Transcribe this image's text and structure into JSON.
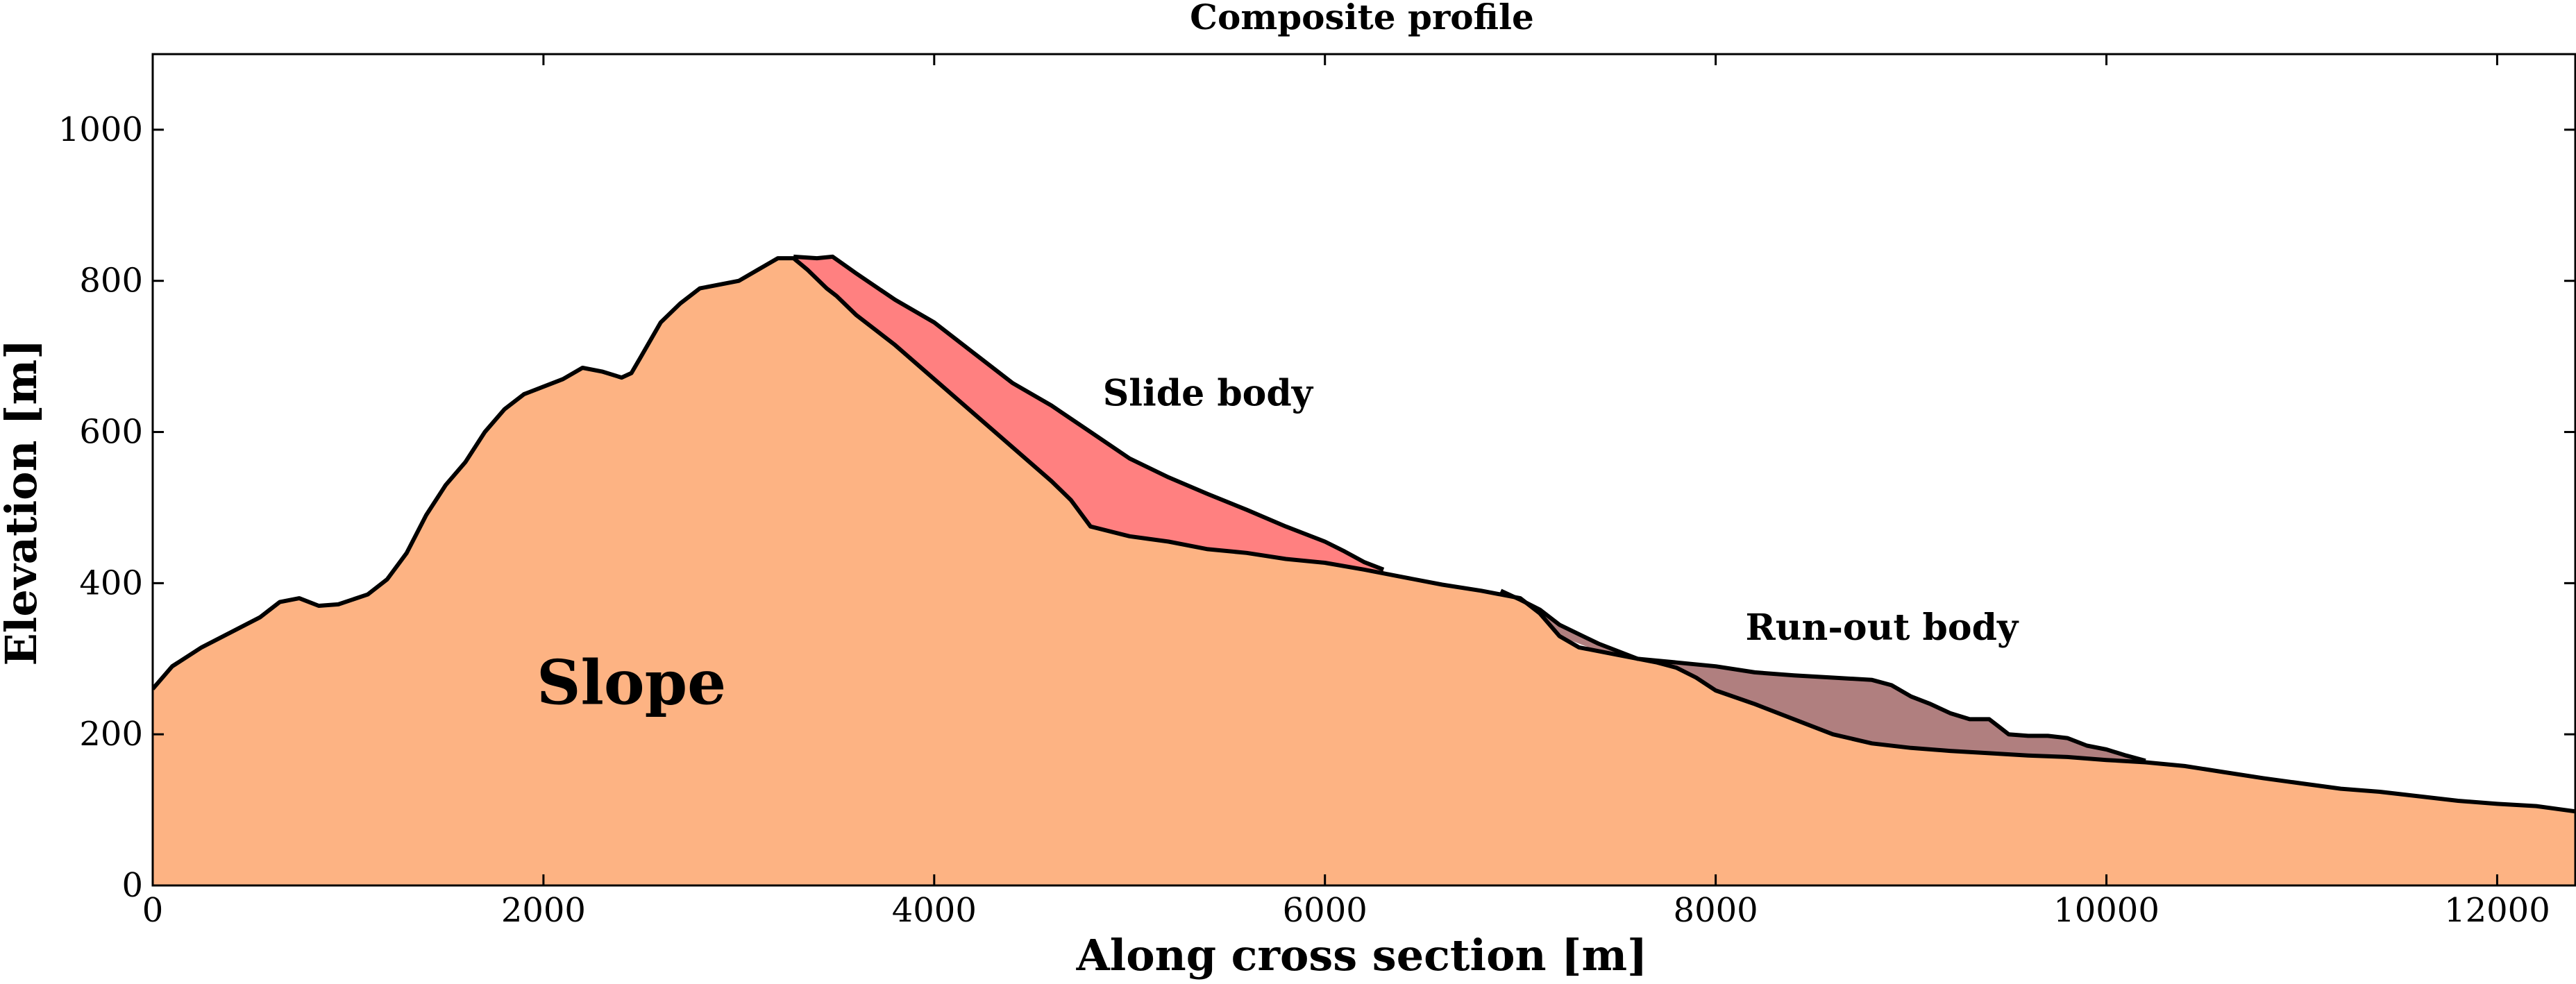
{
  "chart_data": {
    "type": "area",
    "title": "Composite profile",
    "xlabel": "Along cross section [m]",
    "ylabel": "Elevation [m]",
    "xlim": [
      0,
      12400
    ],
    "ylim": [
      0,
      1100
    ],
    "xticks": [
      0,
      2000,
      4000,
      6000,
      8000,
      10000,
      12000
    ],
    "yticks": [
      0,
      200,
      400,
      600,
      800,
      1000
    ],
    "grid": false,
    "colors": {
      "slope": "#fdb383",
      "slide_body": "#ff8080",
      "runout_body": "#b07f7f",
      "outline": "#000000"
    },
    "annotations": [
      {
        "text": "Slope",
        "x": 2450,
        "y": 240
      },
      {
        "text": "Slide body",
        "x": 5400,
        "y": 635
      },
      {
        "text": "Run-out body",
        "x": 8850,
        "y": 325
      }
    ],
    "series": [
      {
        "name": "Slope",
        "x": [
          0,
          100,
          250,
          400,
          550,
          650,
          750,
          850,
          950,
          1100,
          1200,
          1300,
          1400,
          1500,
          1600,
          1700,
          1800,
          1900,
          2000,
          2100,
          2200,
          2300,
          2400,
          2450,
          2500,
          2600,
          2700,
          2800,
          3000,
          3100,
          3200,
          3280,
          3350,
          3450,
          3500,
          3600,
          3700,
          3800,
          4000,
          4200,
          4400,
          4600,
          4700,
          4800,
          5000,
          5200,
          5400,
          5600,
          5800,
          6000,
          6200,
          6400,
          6600,
          6800,
          7000,
          7100,
          7200,
          7300,
          7500,
          7700,
          7800,
          7900,
          8000,
          8200,
          8400,
          8600,
          8800,
          9000,
          9200,
          9400,
          9600,
          9800,
          10000,
          10200,
          10400,
          10600,
          10800,
          11000,
          11200,
          11400,
          11600,
          11800,
          12000,
          12200,
          12400
        ],
        "y": [
          260,
          290,
          315,
          335,
          355,
          375,
          380,
          370,
          372,
          385,
          405,
          440,
          490,
          530,
          560,
          600,
          630,
          650,
          660,
          670,
          685,
          680,
          672,
          678,
          700,
          745,
          770,
          790,
          800,
          815,
          830,
          830,
          815,
          790,
          780,
          755,
          735,
          715,
          670,
          625,
          580,
          535,
          510,
          475,
          462,
          455,
          445,
          440,
          432,
          427,
          418,
          408,
          398,
          390,
          380,
          360,
          330,
          315,
          305,
          295,
          288,
          275,
          258,
          240,
          220,
          200,
          188,
          182,
          178,
          175,
          172,
          170,
          166,
          163,
          158,
          150,
          142,
          135,
          128,
          124,
          118,
          112,
          108,
          105,
          98
        ]
      },
      {
        "name": "Slide body",
        "x": [
          3280,
          3400,
          3480,
          3600,
          3800,
          4000,
          4200,
          4400,
          4600,
          4800,
          5000,
          5200,
          5400,
          5600,
          5800,
          6000,
          6100,
          6200,
          6300
        ],
        "y": [
          832,
          830,
          832,
          810,
          775,
          745,
          705,
          665,
          635,
          600,
          565,
          540,
          518,
          497,
          475,
          455,
          442,
          428,
          418
        ]
      },
      {
        "name": "Run-out body",
        "x": [
          6900,
          7000,
          7100,
          7200,
          7400,
          7600,
          7800,
          8000,
          8200,
          8400,
          8600,
          8800,
          8900,
          9000,
          9100,
          9200,
          9300,
          9400,
          9450,
          9500,
          9600,
          9700,
          9800,
          9900,
          10000,
          10100,
          10200
        ],
        "y": [
          390,
          378,
          365,
          345,
          320,
          300,
          295,
          290,
          282,
          278,
          275,
          272,
          265,
          250,
          240,
          228,
          220,
          220,
          210,
          200,
          198,
          198,
          195,
          185,
          180,
          172,
          165
        ]
      }
    ]
  }
}
